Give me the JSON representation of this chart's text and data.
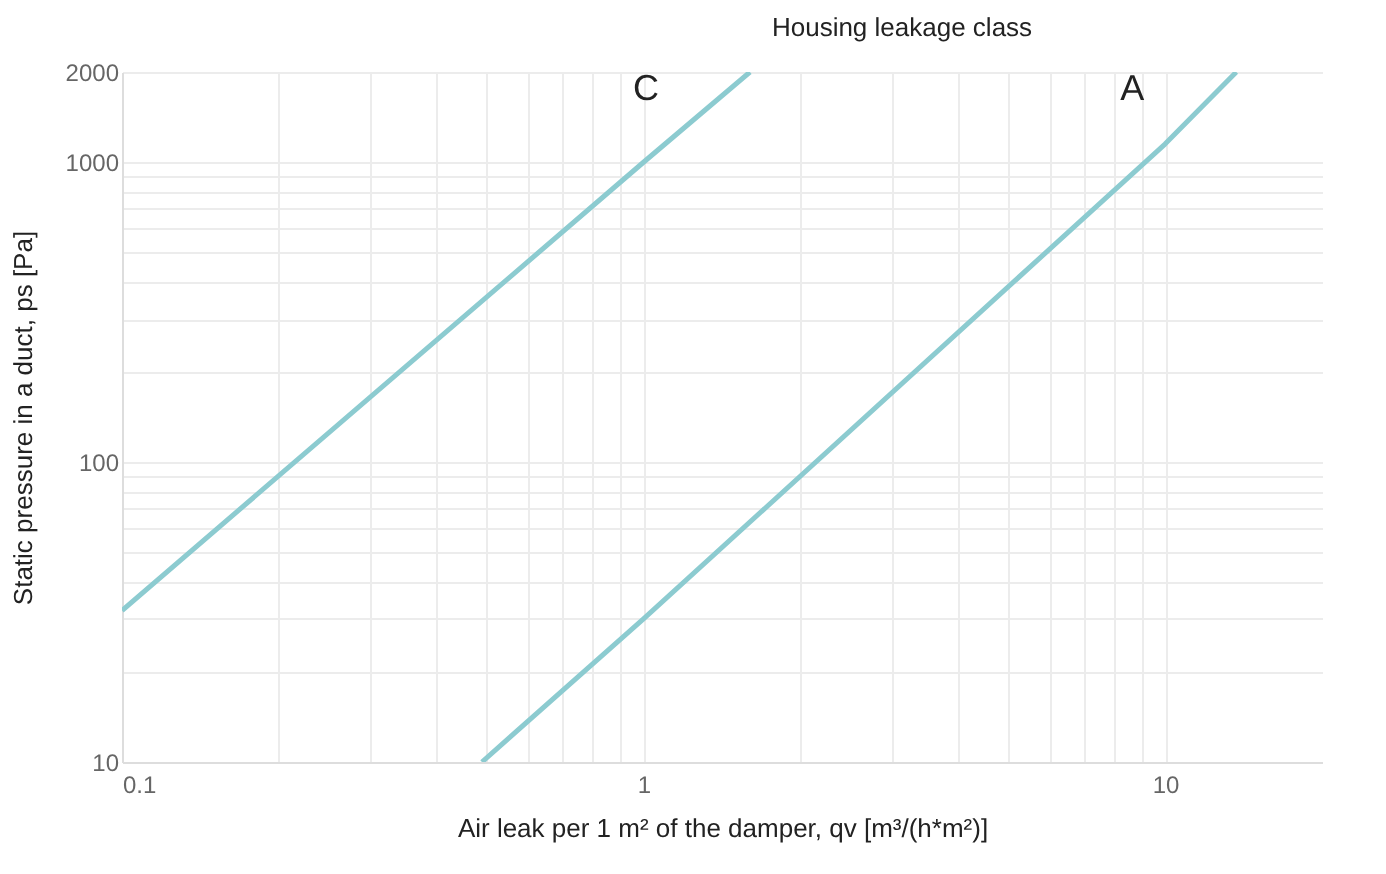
{
  "chart_data": {
    "type": "line",
    "legend_title": "Housing leakage class",
    "xlabel": "Air leak per 1 m² of the damper, qv [m³/(h*m²)]",
    "ylabel": "Static pressure in a duct, ps [Pa]",
    "log": "xy",
    "grid": true,
    "marker": "none",
    "line_style": "solid",
    "xlim": [
      0.1,
      20
    ],
    "ylim": [
      10,
      2000
    ],
    "xticks": [
      0.1,
      {
        "value": 0.2,
        "label": null
      },
      {
        "value": 0.3,
        "label": null
      },
      {
        "value": 0.4,
        "label": null
      },
      {
        "value": 0.5,
        "label": null
      },
      {
        "value": 0.6,
        "label": null
      },
      {
        "value": 0.7,
        "label": null
      },
      {
        "value": 0.8,
        "label": null
      },
      {
        "value": 0.9,
        "label": null
      },
      1,
      {
        "value": 2,
        "label": null
      },
      {
        "value": 3,
        "label": null
      },
      {
        "value": 4,
        "label": null
      },
      {
        "value": 5,
        "label": null
      },
      {
        "value": 6,
        "label": null
      },
      {
        "value": 7,
        "label": null
      },
      {
        "value": 8,
        "label": null
      },
      {
        "value": 9,
        "label": null
      },
      10
    ],
    "yticks": [
      10,
      {
        "value": 20,
        "label": null
      },
      {
        "value": 30,
        "label": null
      },
      {
        "value": 40,
        "label": null
      },
      {
        "value": 50,
        "label": null
      },
      {
        "value": 60,
        "label": null
      },
      {
        "value": 70,
        "label": null
      },
      {
        "value": 80,
        "label": null
      },
      {
        "value": 90,
        "label": null
      },
      100,
      {
        "value": 200,
        "label": null
      },
      {
        "value": 300,
        "label": null
      },
      {
        "value": 400,
        "label": null
      },
      {
        "value": 500,
        "label": null
      },
      {
        "value": 600,
        "label": null
      },
      {
        "value": 700,
        "label": null
      },
      {
        "value": 800,
        "label": null
      },
      {
        "value": 900,
        "label": null
      },
      1000,
      2000
    ],
    "series": [
      {
        "name": "C",
        "color": "#8ccbd0",
        "x": [
          0.1,
          1,
          1.6
        ],
        "values": [
          32,
          1000,
          2000
        ]
      },
      {
        "name": "A",
        "color": "#8ccbd0",
        "x": [
          0.49,
          1,
          10,
          13.7
        ],
        "values": [
          10,
          30,
          1150,
          2000
        ]
      }
    ]
  }
}
